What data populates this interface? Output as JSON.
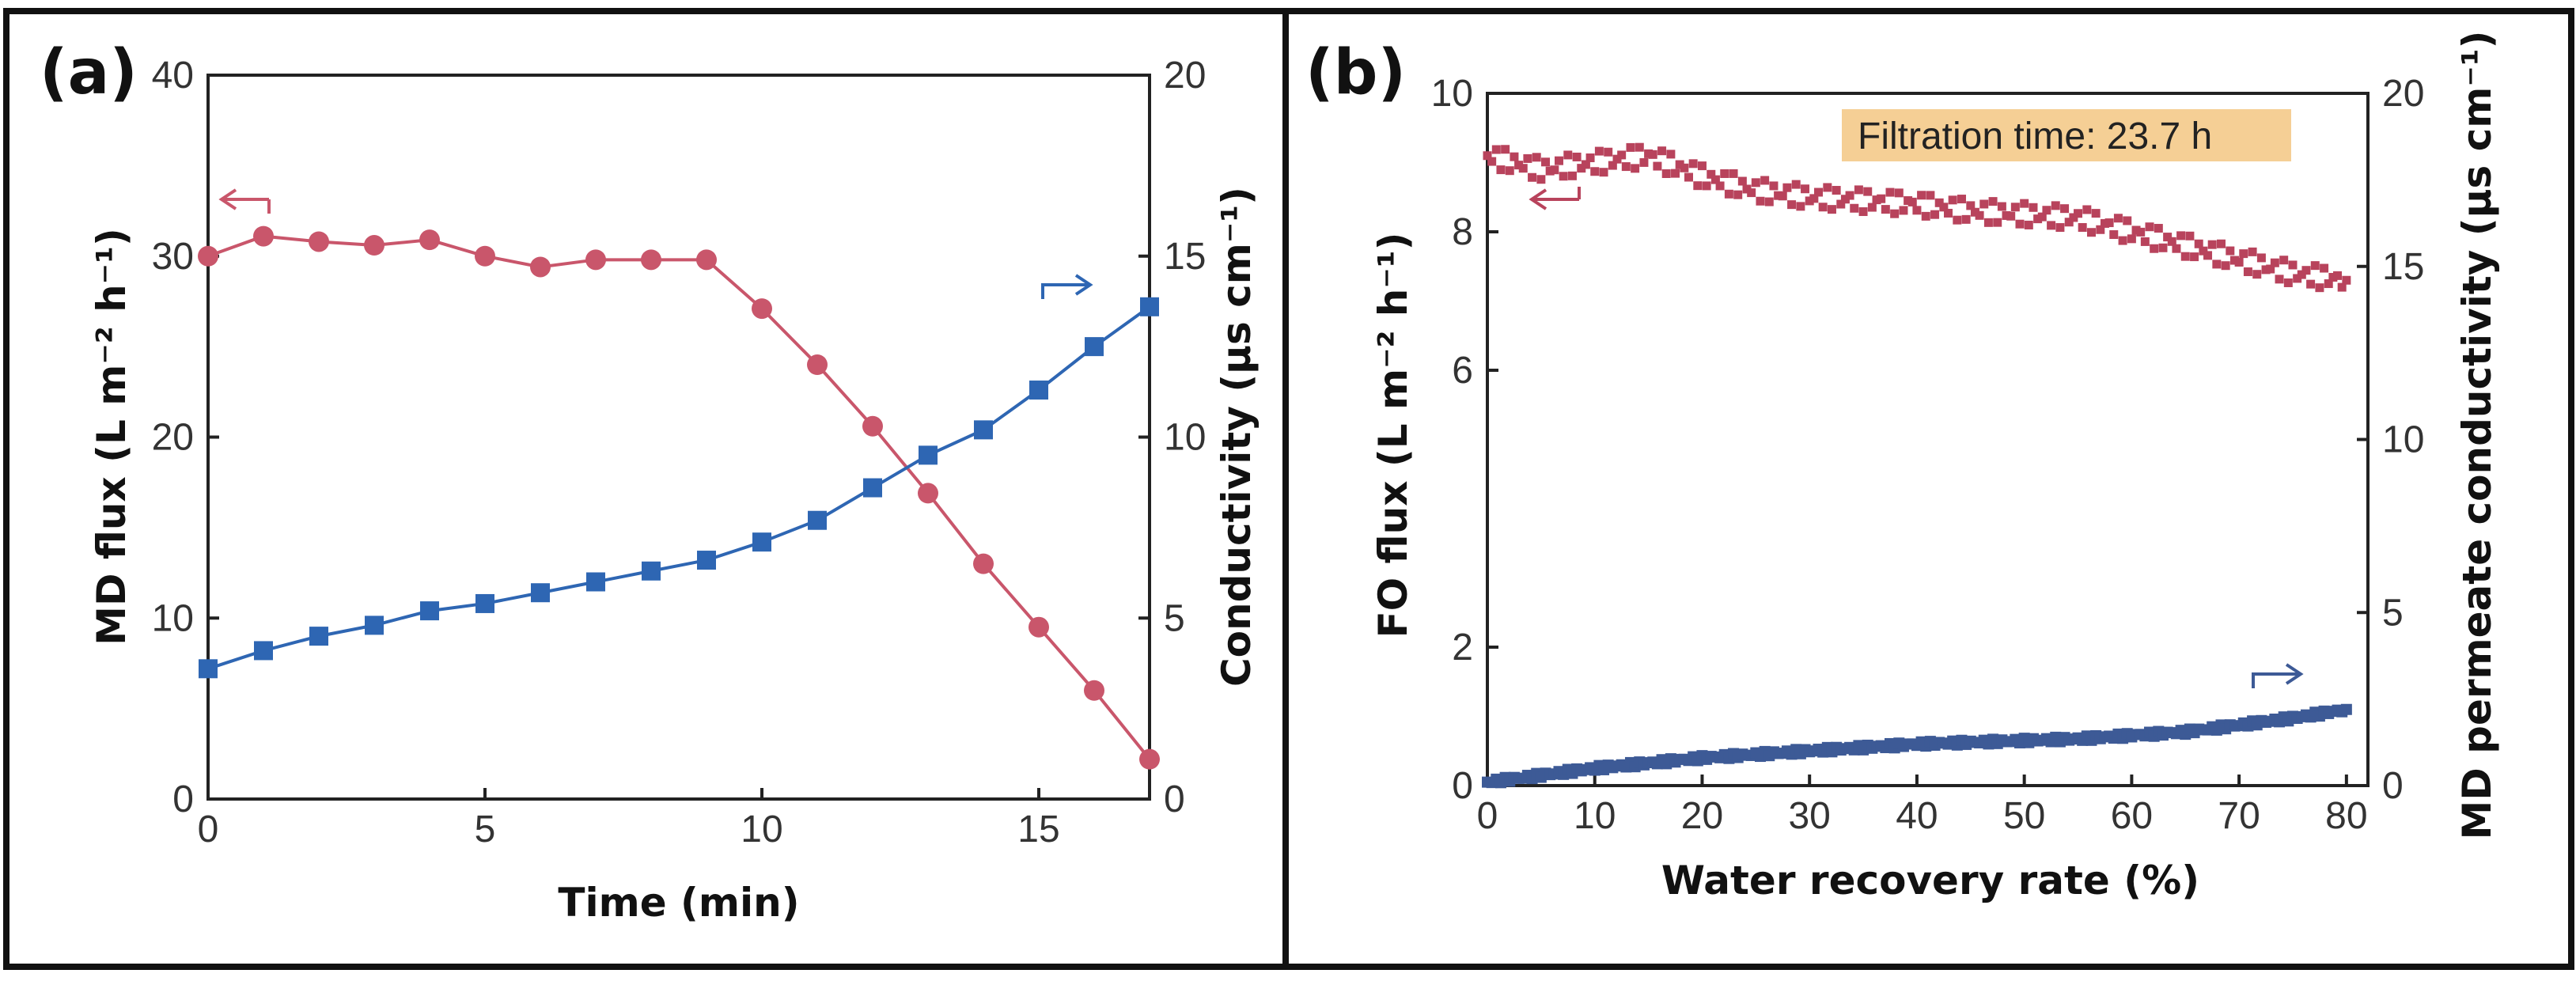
{
  "colors": {
    "series_a_flux": "#c9566b",
    "series_a_cond": "#2e66b3",
    "series_b_flux": "#b8435c",
    "series_b_cond": "#3d5a96",
    "annotation_bg": "#f5cf95"
  },
  "chart_data": [
    {
      "panel_label": "(a)",
      "type": "line",
      "xlabel": "Time (min)",
      "ylabel": "MD flux (L m⁻² h⁻¹)",
      "y2label": "Conductivity  (µs cm⁻¹)",
      "xlim": [
        0,
        17
      ],
      "ylim": [
        0,
        40
      ],
      "y2lim": [
        0,
        20
      ],
      "xticks": [
        "0",
        "5",
        "10",
        "15"
      ],
      "yticks": [
        "0",
        "10",
        "20",
        "30",
        "40"
      ],
      "y2ticks": [
        "0",
        "5",
        "10",
        "15",
        "20"
      ],
      "series": [
        {
          "axis": "left",
          "marker": "circle",
          "x": [
            0,
            1,
            2,
            3,
            4,
            5,
            6,
            7,
            8,
            9,
            10,
            11,
            12,
            13,
            14,
            15,
            16,
            17
          ],
          "values": [
            30.0,
            31.1,
            30.8,
            30.6,
            30.9,
            30.0,
            29.4,
            29.8,
            29.8,
            29.8,
            27.1,
            24.0,
            20.6,
            16.9,
            13.0,
            9.5,
            6.0,
            2.2
          ]
        },
        {
          "axis": "right",
          "marker": "square",
          "x": [
            0,
            1,
            2,
            3,
            4,
            5,
            6,
            7,
            8,
            9,
            10,
            11,
            12,
            13,
            14,
            15,
            16,
            17
          ],
          "values": [
            3.6,
            4.1,
            4.5,
            4.8,
            5.2,
            5.4,
            5.7,
            6.0,
            6.3,
            6.6,
            7.1,
            7.7,
            8.6,
            9.5,
            10.2,
            11.3,
            12.5,
            13.6
          ]
        }
      ],
      "grid": false
    },
    {
      "panel_label": "(b)",
      "type": "scatter",
      "xlabel": "Water recovery rate (%)",
      "ylabel": "FO flux  (L m⁻² h⁻¹)",
      "y2label": "MD permeate conductivity  (µs cm⁻¹)",
      "xlim": [
        0,
        82
      ],
      "ylim": [
        0,
        10
      ],
      "y2lim": [
        0,
        20
      ],
      "xticks": [
        "0",
        "10",
        "20",
        "30",
        "40",
        "50",
        "60",
        "70",
        "80"
      ],
      "yticks": [
        "0",
        "2",
        "6",
        "8",
        "10"
      ],
      "y2ticks": [
        "0",
        "5",
        "10",
        "15",
        "20"
      ],
      "annotation": "Filtration time: 23.7 h",
      "series": [
        {
          "axis": "left",
          "marker": "square",
          "x": [
            0,
            5,
            10,
            15,
            20,
            25,
            30,
            35,
            40,
            45,
            50,
            55,
            60,
            65,
            70,
            75,
            80
          ],
          "values": [
            9.1,
            8.9,
            9.0,
            9.1,
            8.8,
            8.6,
            8.5,
            8.45,
            8.4,
            8.3,
            8.25,
            8.2,
            8.0,
            7.8,
            7.6,
            7.4,
            7.3
          ]
        },
        {
          "axis": "right",
          "marker": "square",
          "x": [
            0,
            5,
            10,
            15,
            20,
            25,
            30,
            35,
            40,
            45,
            50,
            55,
            60,
            65,
            70,
            75,
            80
          ],
          "values": [
            0.1,
            0.3,
            0.5,
            0.65,
            0.8,
            0.9,
            1.0,
            1.1,
            1.2,
            1.25,
            1.3,
            1.35,
            1.45,
            1.55,
            1.75,
            1.95,
            2.2
          ]
        }
      ],
      "grid": false
    }
  ]
}
